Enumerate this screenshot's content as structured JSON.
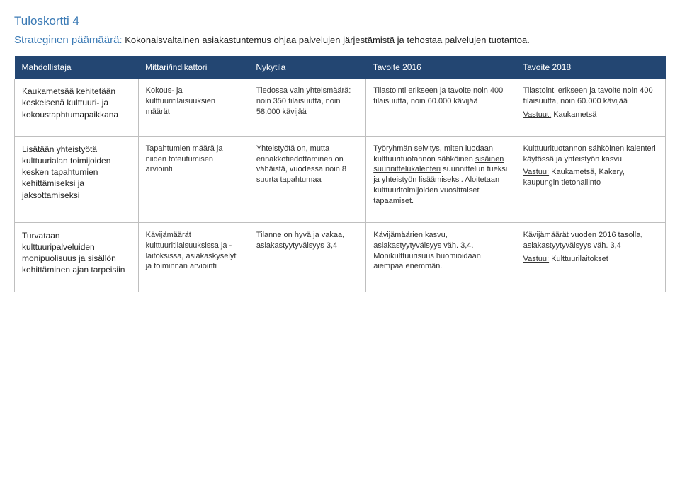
{
  "page": {
    "title": "Tuloskortti 4",
    "subtitle_lead": "Strateginen päämäärä:",
    "subtitle_rest": " Kokonaisvaltainen asiakastuntemus ohjaa palvelujen järjestämistä ja tehostaa palvelujen tuotantoa."
  },
  "table": {
    "columns": [
      {
        "label": "Mahdollistaja",
        "width": "19%"
      },
      {
        "label": "Mittari/indikattori",
        "width": "17%"
      },
      {
        "label": "Nykytila",
        "width": "18%"
      },
      {
        "label": "Tavoite 2016",
        "width": "23%"
      },
      {
        "label": "Tavoite 2018",
        "width": "23%"
      }
    ],
    "header_bg": "#234672",
    "header_fg": "#ffffff",
    "border_color": "#bfbfbf",
    "rows": [
      {
        "c0": "Kaukametsää kehitetään keskeisenä kulttuuri- ja kokoustaphtumapaikkana",
        "c1": "Kokous- ja kulttuuritilaisuuksien määrät",
        "c2": "Tiedossa vain yhteismäärä: noin 350 tilaisuutta, noin 58.000 kävijää",
        "c3": "Tilastointi erikseen ja tavoite noin 400 tilaisuutta, noin 60.000 kävijää",
        "c4a": "Tilastointi erikseen ja tavoite noin 400 tilaisuutta, noin 60.000 kävijää",
        "c4b": "Vastuut:",
        "c4c": " Kaukametsä"
      },
      {
        "c0": "Lisätään yhteistyötä kulttuurialan toimijoiden kesken tapahtumien kehittämiseksi ja jaksottamiseksi",
        "c1": "Tapahtumien määrä ja niiden toteutumisen arviointi",
        "c2": "Yhteistyötä on, mutta ennakkotiedottaminen on vähäistä, vuodessa noin 8 suurta tapahtumaa",
        "c3a": "Työryhmän selvitys, miten luodaan kulttuurituotannon sähköinen ",
        "c3u": "sisäinen suunnittelukalenteri",
        "c3b": " suunnittelun tueksi ja yhteistyön lisäämiseksi. Aloitetaan kulttuuritoimijoiden vuosittaiset tapaamiset.",
        "c4a": "Kulttuurituotannon sähköinen kalenteri käytössä ja yhteistyön kasvu",
        "c4b": "Vastuu:",
        "c4c": " Kaukametsä, Kakery, kaupungin tietohallinto"
      },
      {
        "c0": "Turvataan kulttuuripalveluiden monipuolisuus ja sisällön kehittäminen ajan tarpeisiin",
        "c1": "Kävijämäärät kulttuuritilaisuuksissa ja -laitoksissa, asiakaskyselyt ja toiminnan arviointi",
        "c2": "Tilanne on hyvä ja vakaa, asiakastyytyväisyys 3,4",
        "c3": "Kävijämäärien kasvu, asiakastyytyväisyys väh. 3,4. Monikulttuurisuus huomioidaan aiempaa enemmän.",
        "c4a": "Kävijämäärät vuoden 2016 tasolla, asiakastyytyväisyys väh. 3,4",
        "c4b": "Vastuu:",
        "c4c": " Kulttuurilaitokset"
      }
    ]
  }
}
